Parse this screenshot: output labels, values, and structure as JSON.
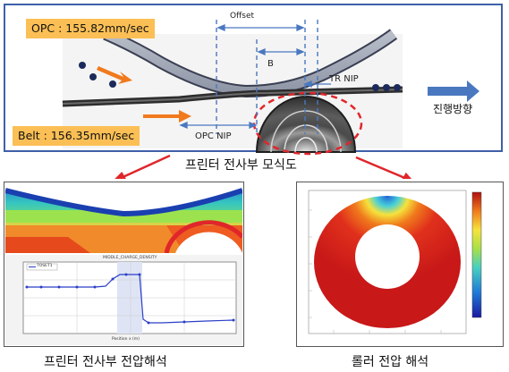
{
  "top_figure": {
    "opc_speed": "OPC : 155.82mm/sec",
    "belt_speed": "Belt : 156.35mm/sec",
    "offset_label": "Offset",
    "b_label": "B",
    "tr_nip_label": "TR NIP",
    "opc_nip_label": "OPC NIP",
    "direction_label": "진행방향",
    "model_caption": "프린터 전사부 모식도"
  },
  "bottom_left": {
    "caption": "프린터 전사부 전압해석",
    "plot_title": "MIDDLE_CHARGE_DENSITY",
    "legend": "TOSET1",
    "xlabel": "Position x (m)"
  },
  "bottom_right": {
    "caption": "롤러 전압 해석"
  },
  "colors": {
    "label_bg": "#fbbf55",
    "frame_blue": "#3f5fa8",
    "arrow_red": "#e0262a",
    "arrow_orange": "#f07a1c",
    "arrow_blue": "#4a78c0"
  }
}
